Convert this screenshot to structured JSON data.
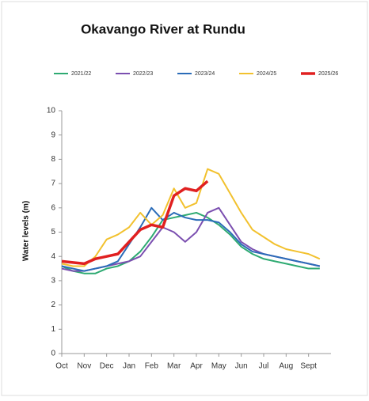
{
  "chart_data": {
    "type": "line",
    "title": "Okavango River at Rundu",
    "y_label": "Water levels (m)",
    "categories": [
      "Oct",
      null,
      "Nov",
      null,
      "Dec",
      null,
      "Jan",
      null,
      "Feb",
      null,
      "Mar",
      null,
      "Apr",
      null,
      "May",
      null,
      "Jun",
      null,
      "Jul",
      null,
      "Aug",
      null,
      "Sept",
      null
    ],
    "series": [
      {
        "name": "2021/22",
        "color": "#2eaa72",
        "values": [
          3.6,
          3.4,
          3.3,
          3.3,
          3.5,
          3.6,
          3.8,
          4.2,
          4.8,
          5.5,
          5.6,
          5.7,
          5.8,
          5.6,
          5.3,
          4.9,
          4.4,
          4.1,
          3.9,
          3.8,
          3.7,
          3.6,
          3.5,
          3.5
        ]
      },
      {
        "name": "2022/23",
        "color": "#7b4fb0",
        "values": [
          3.5,
          3.4,
          3.4,
          3.5,
          3.6,
          3.7,
          3.8,
          4.0,
          4.6,
          5.2,
          5.0,
          4.6,
          5.0,
          5.8,
          6.0,
          5.3,
          4.6,
          4.3,
          4.1,
          4.0,
          3.9,
          3.8,
          3.7,
          3.6
        ]
      },
      {
        "name": "2023/24",
        "color": "#2b6cb8",
        "values": [
          3.6,
          3.5,
          3.4,
          3.5,
          3.6,
          3.8,
          4.5,
          5.2,
          6.0,
          5.5,
          5.8,
          5.6,
          5.5,
          5.5,
          5.4,
          5.0,
          4.5,
          4.2,
          4.1,
          4.0,
          3.9,
          3.8,
          3.7,
          3.6
        ]
      },
      {
        "name": "2024/25",
        "color": "#f2c12e",
        "values": [
          3.7,
          3.6,
          3.6,
          4.0,
          4.7,
          4.9,
          5.2,
          5.8,
          5.3,
          5.7,
          6.8,
          6.0,
          6.2,
          7.6,
          7.4,
          6.6,
          5.8,
          5.1,
          4.8,
          4.5,
          4.3,
          4.2,
          4.1,
          3.9
        ]
      },
      {
        "name": "2025/26",
        "color": "#e02020",
        "values": [
          3.8,
          3.75,
          3.7,
          3.9,
          4.0,
          4.1,
          4.6,
          5.1,
          5.3,
          5.2,
          6.5,
          6.8,
          6.7,
          7.1,
          null,
          null,
          null,
          null,
          null,
          null,
          null,
          null,
          null,
          null
        ]
      }
    ],
    "ylim": [
      0,
      10
    ],
    "yticks": [
      0,
      1,
      2,
      3,
      4,
      5,
      6,
      7,
      8,
      9,
      10
    ]
  }
}
